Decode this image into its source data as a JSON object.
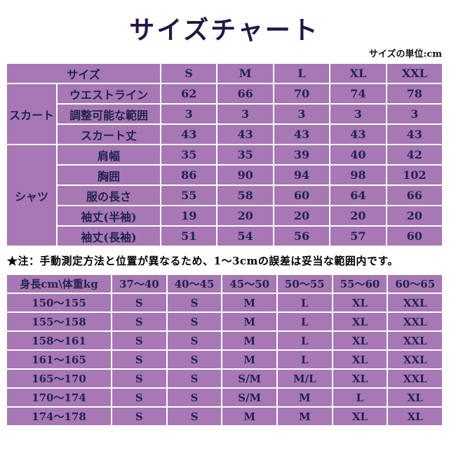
{
  "title": "サイズチャート",
  "unit_label": "サイズの単位:cm",
  "note": "★注：手動測定方法と位置が異なるため、1～3cmの誤差は妥当な範囲内です。",
  "colors": {
    "table_bg": "#a778b4",
    "grid": "#ffffff",
    "cell_text": "#23234f",
    "title_text": "#241743"
  },
  "chart_data": [
    {
      "type": "table",
      "title": "サイズチャート",
      "unit": "cm",
      "corner_label": "サイズ",
      "columns": [
        "S",
        "M",
        "L",
        "XL",
        "XXL"
      ],
      "row_groups": [
        {
          "name": "スカート",
          "rows": [
            {
              "label": "ウエストライン",
              "values": [
                "62",
                "66",
                "70",
                "74",
                "78"
              ]
            },
            {
              "label": "調整可能な範囲",
              "values": [
                "3",
                "3",
                "3",
                "3",
                "3"
              ]
            },
            {
              "label": "スカート丈",
              "values": [
                "43",
                "43",
                "43",
                "43",
                "43"
              ]
            }
          ]
        },
        {
          "name": "シャツ",
          "rows": [
            {
              "label": "肩幅",
              "values": [
                "35",
                "35",
                "39",
                "40",
                "42"
              ]
            },
            {
              "label": "胸囲",
              "values": [
                "86",
                "90",
                "94",
                "98",
                "102"
              ]
            },
            {
              "label": "服の長さ",
              "values": [
                "55",
                "58",
                "60",
                "64",
                "66"
              ]
            },
            {
              "label": "袖丈(半袖)",
              "values": [
                "19",
                "20",
                "20",
                "20",
                "20"
              ]
            },
            {
              "label": "袖丈(長袖)",
              "values": [
                "51",
                "54",
                "56",
                "57",
                "60"
              ]
            }
          ]
        }
      ]
    },
    {
      "type": "table",
      "corner_label": "身長cm\\体重kg",
      "columns": [
        "37～40",
        "40～45",
        "45～50",
        "50～55",
        "55～60",
        "60～65"
      ],
      "rows": [
        {
          "label": "150～155",
          "values": [
            "S",
            "S",
            "M",
            "L",
            "XL",
            "XXL"
          ]
        },
        {
          "label": "155～158",
          "values": [
            "S",
            "S",
            "M",
            "L",
            "XL",
            "XXL"
          ]
        },
        {
          "label": "158～161",
          "values": [
            "S",
            "S",
            "M",
            "L",
            "XL",
            "XXL"
          ]
        },
        {
          "label": "161～165",
          "values": [
            "S",
            "S",
            "M",
            "L",
            "XL",
            "XXL"
          ]
        },
        {
          "label": "165～170",
          "values": [
            "S",
            "S",
            "S/M",
            "M/L",
            "XL",
            "XXL"
          ]
        },
        {
          "label": "170～174",
          "values": [
            "S",
            "S",
            "S/M",
            "M",
            "L",
            "XL"
          ]
        },
        {
          "label": "174～178",
          "values": [
            "S",
            "S",
            "M",
            "M",
            "XL",
            "XL"
          ]
        }
      ]
    }
  ]
}
